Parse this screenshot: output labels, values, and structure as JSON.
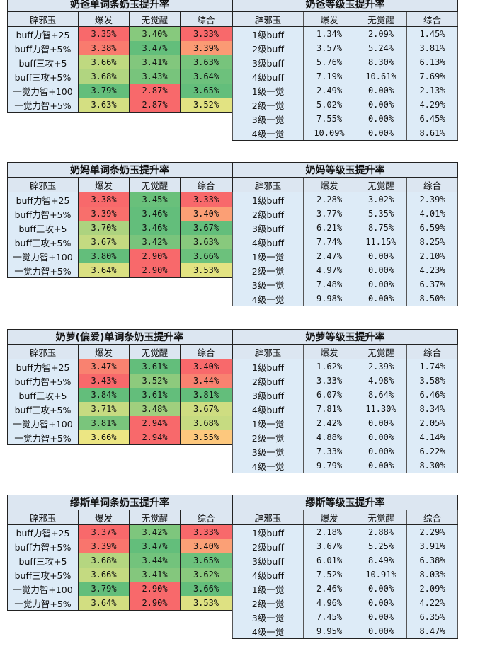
{
  "headers": [
    "辟邪玉",
    "爆发",
    "无觉醒",
    "综合"
  ],
  "colors": {
    "low": "#f8696b",
    "mid": "#ffeb84",
    "high": "#63be7b",
    "header_bg": "#dce6f1",
    "label_bg": "#ddebf7"
  },
  "blocks": [
    {
      "left": {
        "title": "奶爸单词条奶玉提升率",
        "rows": [
          [
            "buff力智+25",
            "3.35%",
            "3.40%",
            "3.33%"
          ],
          [
            "buff力智+5%",
            "3.38%",
            "3.47%",
            "3.39%"
          ],
          [
            "buff三攻+5",
            "3.66%",
            "3.41%",
            "3.63%"
          ],
          [
            "buff三攻+5%",
            "3.68%",
            "3.43%",
            "3.64%"
          ],
          [
            "一觉力智+100",
            "3.79%",
            "2.87%",
            "3.65%"
          ],
          [
            "一觉力智+5%",
            "3.63%",
            "2.87%",
            "3.52%"
          ]
        ]
      },
      "right": {
        "title": "奶爸等级玉提升率",
        "rows": [
          [
            "1级buff",
            "1.34%",
            "2.09%",
            "1.45%"
          ],
          [
            "2级buff",
            "3.57%",
            "5.24%",
            "3.81%"
          ],
          [
            "3级buff",
            "5.76%",
            "8.30%",
            "6.13%"
          ],
          [
            "4级buff",
            "7.19%",
            "10.61%",
            "7.69%"
          ],
          [
            "1级一觉",
            "2.49%",
            "0.00%",
            "2.13%"
          ],
          [
            "2级一觉",
            "5.02%",
            "0.00%",
            "4.29%"
          ],
          [
            "3级一觉",
            "7.55%",
            "0.00%",
            "6.45%"
          ],
          [
            "4级一觉",
            "10.09%",
            "0.00%",
            "8.61%"
          ]
        ]
      }
    },
    {
      "left": {
        "title": "奶妈单词条奶玉提升率",
        "rows": [
          [
            "buff力智+25",
            "3.38%",
            "3.45%",
            "3.33%"
          ],
          [
            "buff力智+5%",
            "3.39%",
            "3.46%",
            "3.40%"
          ],
          [
            "buff三攻+5",
            "3.70%",
            "3.46%",
            "3.67%"
          ],
          [
            "buff三攻+5%",
            "3.67%",
            "3.42%",
            "3.63%"
          ],
          [
            "一觉力智+100",
            "3.80%",
            "2.90%",
            "3.66%"
          ],
          [
            "一觉力智+5%",
            "3.64%",
            "2.90%",
            "3.53%"
          ]
        ]
      },
      "right": {
        "title": "奶妈等级玉提升率",
        "rows": [
          [
            "1级buff",
            "2.28%",
            "3.02%",
            "2.39%"
          ],
          [
            "2级buff",
            "3.77%",
            "5.35%",
            "4.01%"
          ],
          [
            "3级buff",
            "6.21%",
            "8.75%",
            "6.59%"
          ],
          [
            "4级buff",
            "7.74%",
            "11.15%",
            "8.25%"
          ],
          [
            "1级一觉",
            "2.47%",
            "0.00%",
            "2.10%"
          ],
          [
            "2级一觉",
            "4.97%",
            "0.00%",
            "4.23%"
          ],
          [
            "3级一觉",
            "7.48%",
            "0.00%",
            "6.37%"
          ],
          [
            "4级一觉",
            "9.98%",
            "0.00%",
            "8.50%"
          ]
        ]
      }
    },
    {
      "left": {
        "title": "奶萝(偏爱)单词条奶玉提升率",
        "rows": [
          [
            "buff力智+25",
            "3.47%",
            "3.61%",
            "3.40%"
          ],
          [
            "buff力智+5%",
            "3.43%",
            "3.52%",
            "3.44%"
          ],
          [
            "buff三攻+5",
            "3.84%",
            "3.61%",
            "3.81%"
          ],
          [
            "buff三攻+5%",
            "3.71%",
            "3.48%",
            "3.67%"
          ],
          [
            "一觉力智+100",
            "3.81%",
            "2.94%",
            "3.68%"
          ],
          [
            "一觉力智+5%",
            "3.66%",
            "2.94%",
            "3.55%"
          ]
        ]
      },
      "right": {
        "title": "奶萝等级玉提升率",
        "rows": [
          [
            "1级buff",
            "1.62%",
            "2.39%",
            "1.74%"
          ],
          [
            "2级buff",
            "3.33%",
            "4.98%",
            "3.58%"
          ],
          [
            "3级buff",
            "6.07%",
            "8.64%",
            "6.46%"
          ],
          [
            "4级buff",
            "7.81%",
            "11.30%",
            "8.34%"
          ],
          [
            "1级一觉",
            "2.42%",
            "0.00%",
            "2.05%"
          ],
          [
            "2级一觉",
            "4.88%",
            "0.00%",
            "4.14%"
          ],
          [
            "3级一觉",
            "7.33%",
            "0.00%",
            "6.22%"
          ],
          [
            "4级一觉",
            "9.79%",
            "0.00%",
            "8.30%"
          ]
        ]
      }
    },
    {
      "left": {
        "title": "缪斯单词条奶玉提升率",
        "rows": [
          [
            "buff力智+25",
            "3.37%",
            "3.42%",
            "3.33%"
          ],
          [
            "buff力智+5%",
            "3.39%",
            "3.47%",
            "3.40%"
          ],
          [
            "buff三攻+5",
            "3.68%",
            "3.44%",
            "3.65%"
          ],
          [
            "buff三攻+5%",
            "3.66%",
            "3.41%",
            "3.62%"
          ],
          [
            "一觉力智+100",
            "3.79%",
            "2.90%",
            "3.66%"
          ],
          [
            "一觉力智+5%",
            "3.64%",
            "2.90%",
            "3.53%"
          ]
        ]
      },
      "right": {
        "title": "缪斯等级玉提升率",
        "rows": [
          [
            "1级buff",
            "2.18%",
            "2.88%",
            "2.29%"
          ],
          [
            "2级buff",
            "3.67%",
            "5.25%",
            "3.91%"
          ],
          [
            "3级buff",
            "6.01%",
            "8.49%",
            "6.38%"
          ],
          [
            "4级buff",
            "7.52%",
            "10.91%",
            "8.03%"
          ],
          [
            "1级一觉",
            "2.46%",
            "0.00%",
            "2.09%"
          ],
          [
            "2级一觉",
            "4.96%",
            "0.00%",
            "4.22%"
          ],
          [
            "3级一觉",
            "7.45%",
            "0.00%",
            "6.35%"
          ],
          [
            "4级一觉",
            "9.95%",
            "0.00%",
            "8.47%"
          ]
        ]
      }
    }
  ]
}
